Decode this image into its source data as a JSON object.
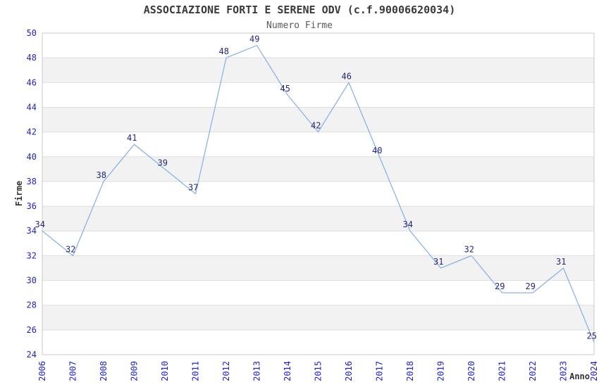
{
  "chart_data": {
    "type": "line",
    "title": "ASSOCIAZIONE FORTI E SERENE ODV (c.f.90006620034)",
    "subtitle": "Numero Firme",
    "xlabel": "Anno",
    "ylabel": "Firme",
    "categories": [
      "2006",
      "2007",
      "2008",
      "2009",
      "2010",
      "2011",
      "2012",
      "2013",
      "2014",
      "2015",
      "2016",
      "2017",
      "2018",
      "2019",
      "2020",
      "2021",
      "2022",
      "2023",
      "2024"
    ],
    "values": [
      34,
      32,
      38,
      41,
      39,
      37,
      48,
      49,
      45,
      42,
      46,
      40,
      34,
      31,
      32,
      29,
      29,
      31,
      25
    ],
    "ylim": [
      24,
      50
    ],
    "ytick_step": 2,
    "grid": true,
    "band_fill": true,
    "legend": null,
    "colors": {
      "line": "#8ab4e8",
      "tick_label": "#2222cc",
      "point_label": "#26267a",
      "band": "#f2f2f2",
      "grid": "#dedede",
      "border": "#c9c9c9",
      "title": "#3a3a3a",
      "subtitle": "#5a5a5a",
      "axis_label": "#333333",
      "background": "#ffffff"
    }
  }
}
